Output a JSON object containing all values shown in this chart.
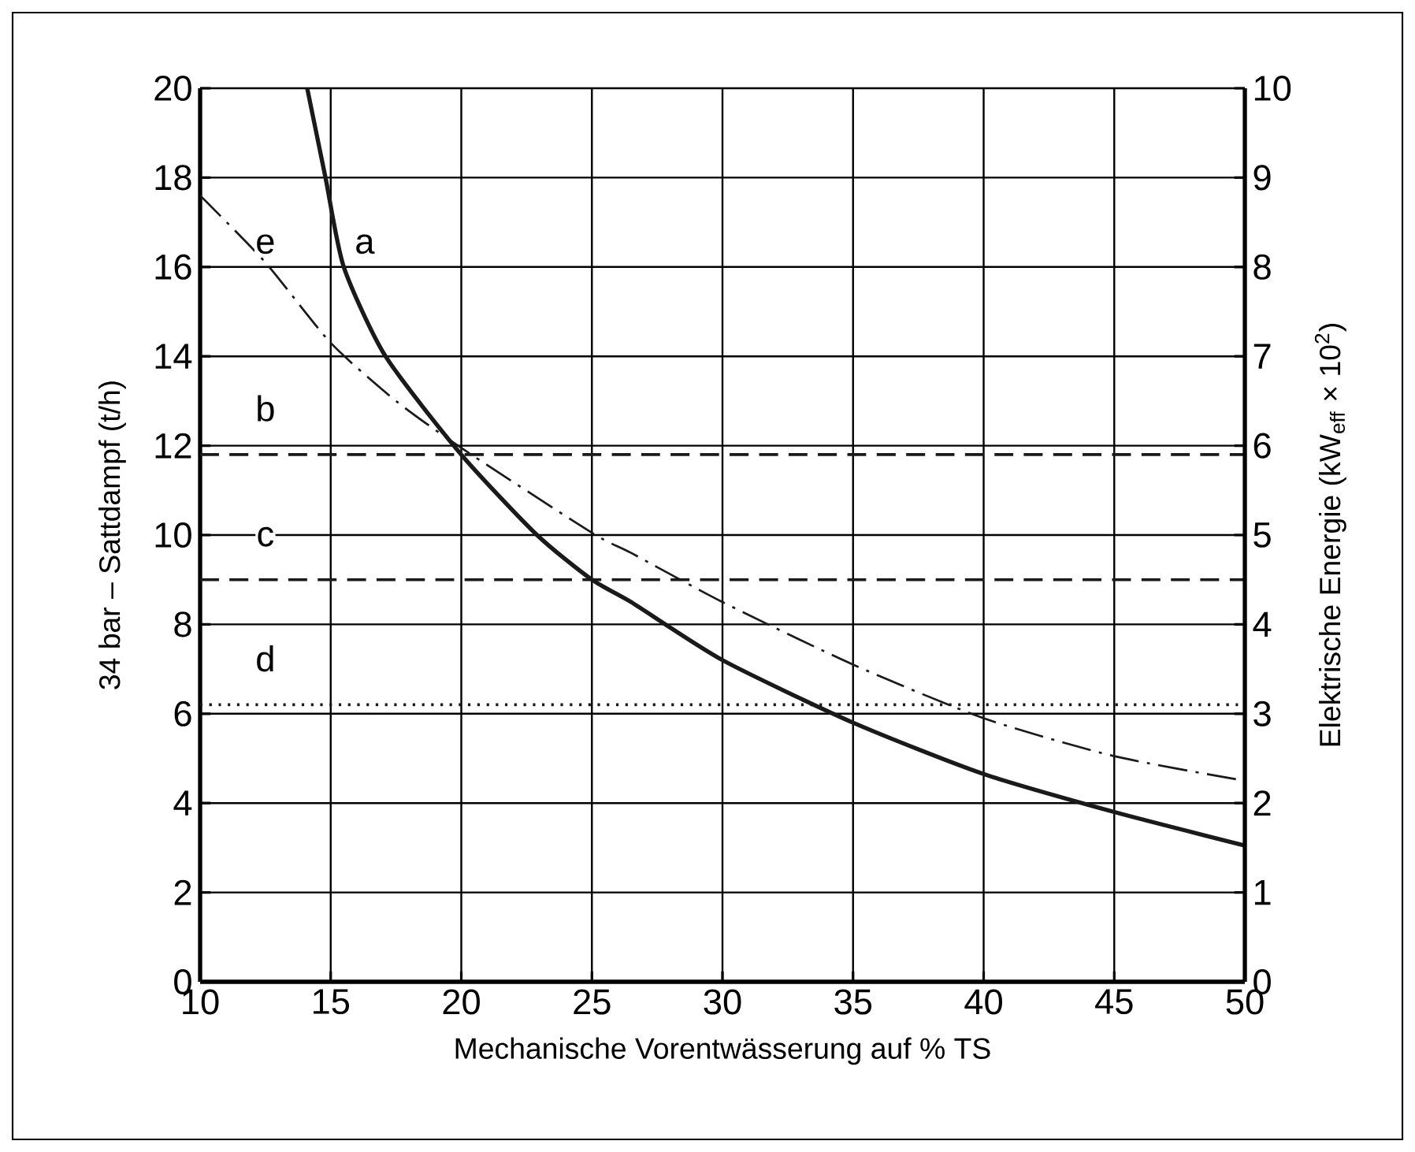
{
  "chart_data": {
    "type": "line",
    "xlabel": "Mechanische Vorentwässerung auf % TS",
    "ylabel": "34 bar – Sattdampf (t/h)",
    "y2label": "Elektrische Energie (kW$_{eff}$ × 10$^{2}$)",
    "xlim": [
      10,
      50
    ],
    "xticks": [
      10,
      15,
      20,
      25,
      30,
      35,
      40,
      45,
      50
    ],
    "ylim": [
      0,
      20
    ],
    "yticks": [
      0,
      2,
      4,
      6,
      8,
      10,
      12,
      14,
      16,
      18,
      20
    ],
    "y2lim": [
      0,
      10
    ],
    "y2ticks": [
      0,
      1,
      2,
      3,
      4,
      5,
      6,
      7,
      8,
      9,
      10
    ],
    "grid": true,
    "marker": "none",
    "series": [
      {
        "name": "a",
        "color": "#1a1a1a",
        "line_style": "solid",
        "x": [
          14.1,
          14.8,
          15.5,
          17.1,
          20,
          22.9,
          25,
          26.5,
          30,
          35,
          40,
          45,
          50
        ],
        "values": [
          20,
          18,
          16,
          14,
          11.8,
          10,
          9.0,
          8.5,
          7.2,
          5.8,
          4.65,
          3.8,
          3.05
        ]
      },
      {
        "name": "b",
        "color": "#1a1a1a",
        "line_style": "dashed",
        "x": [
          10,
          50
        ],
        "values": [
          11.8,
          11.8
        ]
      },
      {
        "name": "c",
        "color": "#1a1a1a",
        "line_style": "dashed",
        "x": [
          10,
          50
        ],
        "values": [
          9.0,
          9.0
        ]
      },
      {
        "name": "d",
        "color": "#1a1a1a",
        "line_style": "dotted",
        "x": [
          10,
          50
        ],
        "values": [
          6.2,
          6.2
        ]
      },
      {
        "name": "e",
        "color": "#1a1a1a",
        "line_style": "dashdot",
        "x": [
          10,
          12.5,
          15,
          17.5,
          20,
          25,
          26.5,
          30,
          35,
          40,
          45,
          50
        ],
        "values": [
          17.6,
          16.1,
          14.3,
          13.0,
          11.95,
          10.05,
          9.6,
          8.5,
          7.1,
          5.9,
          5.05,
          4.5
        ]
      }
    ]
  }
}
